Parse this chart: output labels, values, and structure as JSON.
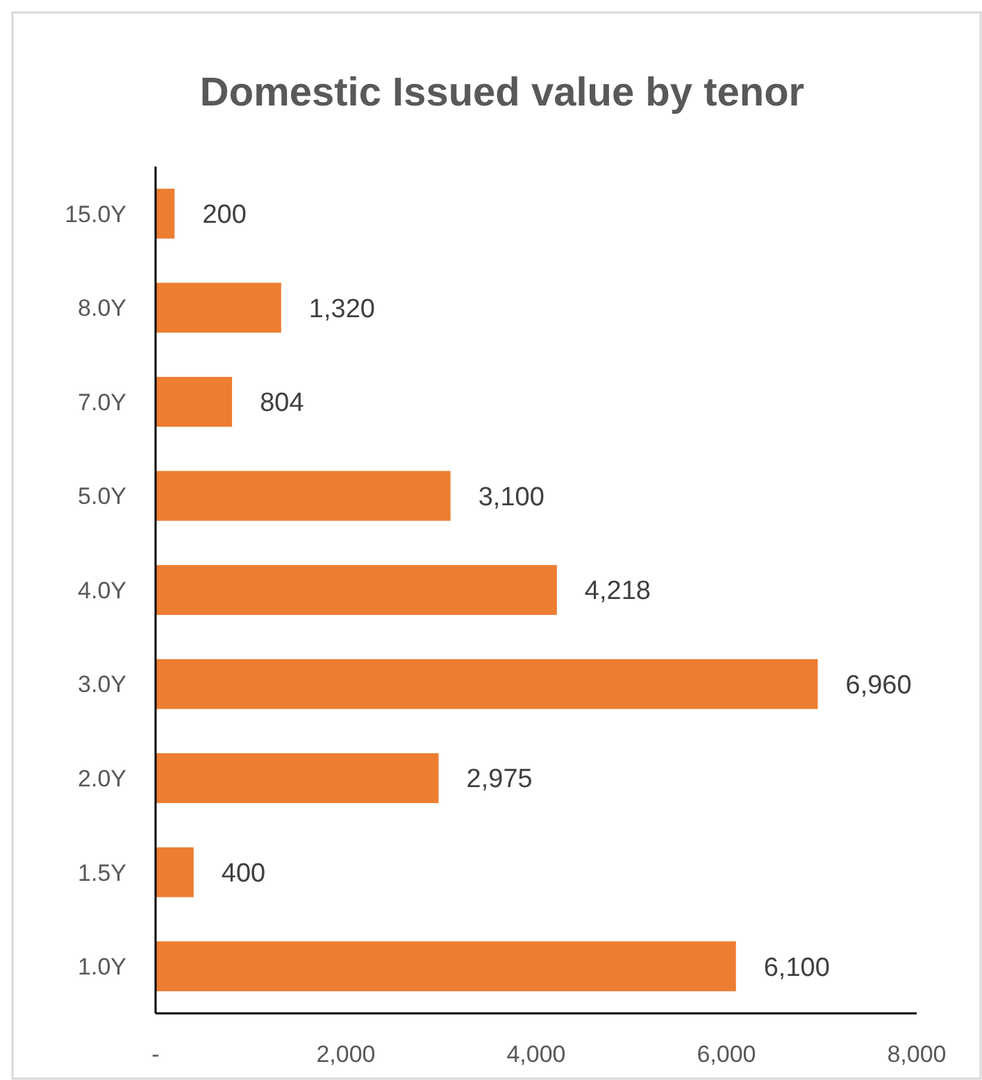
{
  "chart_data": {
    "type": "bar",
    "orientation": "horizontal",
    "title": "Domestic Issued value by tenor",
    "categories": [
      "15.0Y",
      "8.0Y",
      "7.0Y",
      "5.0Y",
      "4.0Y",
      "3.0Y",
      "2.0Y",
      "1.5Y",
      "1.0Y"
    ],
    "values": [
      200,
      1320,
      804,
      3100,
      4218,
      6960,
      2975,
      400,
      6100
    ],
    "color": "#ed7d31",
    "xlim": [
      0,
      8000
    ],
    "xticks": [
      {
        "value": 0,
        "label": "-"
      },
      {
        "value": 2000,
        "label": "2,000"
      },
      {
        "value": 4000,
        "label": "4,000"
      },
      {
        "value": 6000,
        "label": "6,000"
      },
      {
        "value": 8000,
        "label": "8,000"
      }
    ],
    "value_labels": [
      "200",
      "1,320",
      "804",
      "3,100",
      "4,218",
      "6,960",
      "2,975",
      "400",
      "6,100"
    ],
    "grid": false
  }
}
